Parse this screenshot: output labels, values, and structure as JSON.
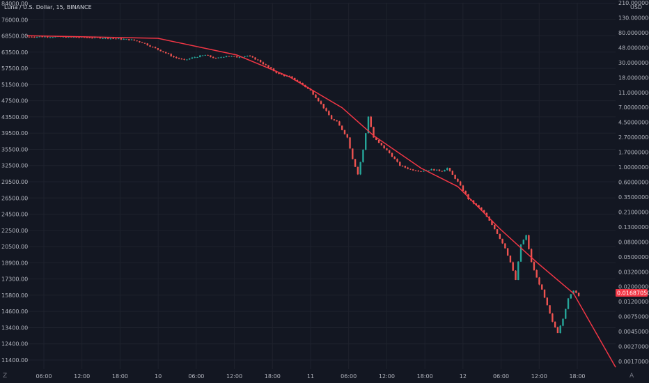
{
  "header": {
    "symbol": "Luna / U.S. Dollar, 15, BINANCE"
  },
  "left_axis": {
    "ticks": [
      "84000.00",
      "76000.00",
      "68500.00",
      "63500.00",
      "57500.00",
      "51500.00",
      "47500.00",
      "43500.00",
      "39500.00",
      "35500.00",
      "32500.00",
      "29500.00",
      "26500.00",
      "24500.00",
      "22500.00",
      "20500.00",
      "18900.00",
      "17300.00",
      "15800.00",
      "14600.00",
      "13400.00",
      "12400.00",
      "11400.00"
    ]
  },
  "right_axis": {
    "unit": "USD",
    "ticks": [
      "210.00000000",
      "130.00000000",
      "80.00000000",
      "48.00000000",
      "30.00000000",
      "18.00000000",
      "11.00000000",
      "7.00000000",
      "4.50000000",
      "2.70000000",
      "1.70000000",
      "1.00000000",
      "0.60000000",
      "0.35000000",
      "0.21000000",
      "0.13000000",
      "0.08000000",
      "0.05000000",
      "0.03200000",
      "0.02000000",
      "0.01200000",
      "0.00750000",
      "0.00450000",
      "0.00270000",
      "0.00170000"
    ],
    "last_price": "0.01687050"
  },
  "time_axis": {
    "ticks": [
      "06:00",
      "12:00",
      "18:00",
      "10",
      "06:00",
      "12:00",
      "18:00",
      "11",
      "06:00",
      "12:00",
      "18:00",
      "12",
      "06:00",
      "12:00",
      "18:00"
    ]
  },
  "corner_labels": {
    "left": "Z",
    "right": "A"
  },
  "chart_data": {
    "type": "candlestick",
    "title": "Luna / U.S. Dollar, 15, BINANCE",
    "y_scale": "log",
    "y_unit": "USD",
    "ylim": [
      0.0015,
      250
    ],
    "close_path": [
      {
        "t": 0,
        "v": 82
      },
      {
        "t": 4,
        "v": 82
      },
      {
        "t": 8,
        "v": 81
      },
      {
        "t": 12,
        "v": 80
      },
      {
        "t": 16,
        "v": 78
      },
      {
        "t": 20,
        "v": 74
      },
      {
        "t": 22,
        "v": 68
      },
      {
        "t": 24,
        "v": 58
      },
      {
        "t": 26,
        "v": 50
      },
      {
        "t": 28,
        "v": 42
      },
      {
        "t": 30,
        "v": 38
      },
      {
        "t": 32,
        "v": 42
      },
      {
        "t": 34,
        "v": 45
      },
      {
        "t": 36,
        "v": 40
      },
      {
        "t": 38,
        "v": 44
      },
      {
        "t": 40,
        "v": 42
      },
      {
        "t": 42,
        "v": 44
      },
      {
        "t": 44,
        "v": 38
      },
      {
        "t": 46,
        "v": 30
      },
      {
        "t": 48,
        "v": 24
      },
      {
        "t": 50,
        "v": 22
      },
      {
        "t": 52,
        "v": 18
      },
      {
        "t": 54,
        "v": 14
      },
      {
        "t": 56,
        "v": 9
      },
      {
        "t": 58,
        "v": 5.5
      },
      {
        "t": 59,
        "v": 5
      },
      {
        "t": 61,
        "v": 3
      },
      {
        "t": 62,
        "v": 1.5
      },
      {
        "t": 63,
        "v": 0.9
      },
      {
        "t": 64,
        "v": 2
      },
      {
        "t": 65,
        "v": 6
      },
      {
        "t": 66,
        "v": 3
      },
      {
        "t": 67,
        "v": 2.5
      },
      {
        "t": 69,
        "v": 1.8
      },
      {
        "t": 71,
        "v": 1.2
      },
      {
        "t": 73,
        "v": 1.05
      },
      {
        "t": 75,
        "v": 1.0
      },
      {
        "t": 77,
        "v": 1.05
      },
      {
        "t": 79,
        "v": 1.0
      },
      {
        "t": 80,
        "v": 1.1
      },
      {
        "t": 82,
        "v": 0.7
      },
      {
        "t": 84,
        "v": 0.4
      },
      {
        "t": 86,
        "v": 0.3
      },
      {
        "t": 87,
        "v": 0.25
      },
      {
        "t": 89,
        "v": 0.15
      },
      {
        "t": 91,
        "v": 0.08
      },
      {
        "t": 92,
        "v": 0.05
      },
      {
        "t": 93,
        "v": 0.028
      },
      {
        "t": 94,
        "v": 0.09
      },
      {
        "t": 95,
        "v": 0.12
      },
      {
        "t": 96,
        "v": 0.05
      },
      {
        "t": 97,
        "v": 0.03
      },
      {
        "t": 98,
        "v": 0.02
      },
      {
        "t": 99,
        "v": 0.012
      },
      {
        "t": 100,
        "v": 0.007
      },
      {
        "t": 101,
        "v": 0.005
      },
      {
        "t": 102,
        "v": 0.008
      },
      {
        "t": 103,
        "v": 0.015
      },
      {
        "t": 104,
        "v": 0.02
      },
      {
        "t": 105,
        "v": 0.0169
      }
    ],
    "trend_curve": [
      {
        "t": 0,
        "v": 85
      },
      {
        "t": 25,
        "v": 78
      },
      {
        "t": 40,
        "v": 45
      },
      {
        "t": 50,
        "v": 22
      },
      {
        "t": 60,
        "v": 8
      },
      {
        "t": 66,
        "v": 3.2
      },
      {
        "t": 75,
        "v": 1.1
      },
      {
        "t": 82,
        "v": 0.6
      },
      {
        "t": 90,
        "v": 0.15
      },
      {
        "t": 97,
        "v": 0.05
      },
      {
        "t": 104,
        "v": 0.018
      },
      {
        "t": 112,
        "v": 0.0016
      }
    ],
    "colors": {
      "up": "#26a69a",
      "down": "#ef5350",
      "trend": "#f23645",
      "background": "#131722",
      "grid": "#1e222d",
      "price_tag": "#f23645"
    }
  }
}
